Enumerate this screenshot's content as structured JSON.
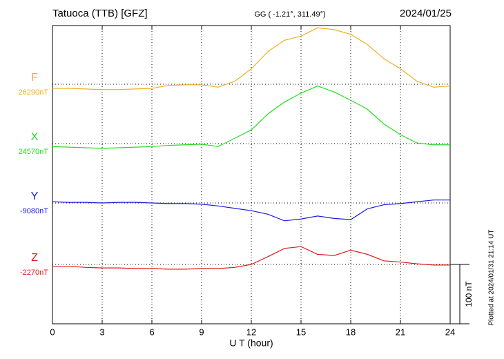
{
  "chart_data": {
    "type": "line",
    "title": "Tatuoca (TTB)  [GFZ]",
    "subtitle": "GG ( -1.21°, 311.49°)",
    "date": "2024/01/25",
    "footnote": "Plotted at 2024/01/31 21:14 UT",
    "xlabel": "U T (hour)",
    "xlim": [
      0,
      24
    ],
    "xticks": [
      0,
      3,
      6,
      9,
      12,
      15,
      18,
      21,
      24
    ],
    "grid": true,
    "scale_bar": {
      "value": 100,
      "label": "100 nT"
    },
    "x": [
      0,
      1,
      2,
      3,
      4,
      5,
      6,
      7,
      8,
      9,
      10,
      11,
      12,
      13,
      14,
      15,
      16,
      17,
      18,
      19,
      20,
      21,
      22,
      23,
      24
    ],
    "series": [
      {
        "name": "F",
        "color": "#f0b020",
        "baseline": {
          "value": 26290,
          "label": "26290nT"
        },
        "values": [
          26283,
          26283,
          26282,
          26281,
          26281,
          26282,
          26283,
          26288,
          26289,
          26289,
          26285,
          26295,
          26316,
          26345,
          26364,
          26371,
          26385,
          26382,
          26374,
          26357,
          26333,
          26316,
          26295,
          26285,
          26287
        ]
      },
      {
        "name": "X",
        "color": "#22dd22",
        "baseline": {
          "value": 24570,
          "label": "24570nT"
        },
        "values": [
          24565,
          24564,
          24563,
          24562,
          24563,
          24564,
          24565,
          24567,
          24568,
          24569,
          24565,
          24579,
          24593,
          24620,
          24640,
          24655,
          24667,
          24657,
          24643,
          24628,
          24603,
          24585,
          24571,
          24568,
          24568
        ]
      },
      {
        "name": "Y",
        "color": "#1a1adc",
        "baseline": {
          "value": -9080,
          "label": "-9080nT"
        },
        "values": [
          -9078,
          -9079,
          -9079,
          -9080,
          -9079,
          -9079,
          -9080,
          -9081,
          -9081,
          -9082,
          -9085,
          -9089,
          -9093,
          -9099,
          -9110,
          -9107,
          -9102,
          -9106,
          -9108,
          -9090,
          -9083,
          -9081,
          -9078,
          -9075,
          -9075
        ]
      },
      {
        "name": "Z",
        "color": "#e01818",
        "baseline": {
          "value": -2270,
          "label": "-2270nT"
        },
        "values": [
          -2273,
          -2273,
          -2275,
          -2276,
          -2276,
          -2277,
          -2277,
          -2278,
          -2278,
          -2277,
          -2277,
          -2275,
          -2270,
          -2257,
          -2243,
          -2240,
          -2253,
          -2255,
          -2246,
          -2253,
          -2264,
          -2266,
          -2269,
          -2271,
          -2271
        ]
      }
    ]
  }
}
